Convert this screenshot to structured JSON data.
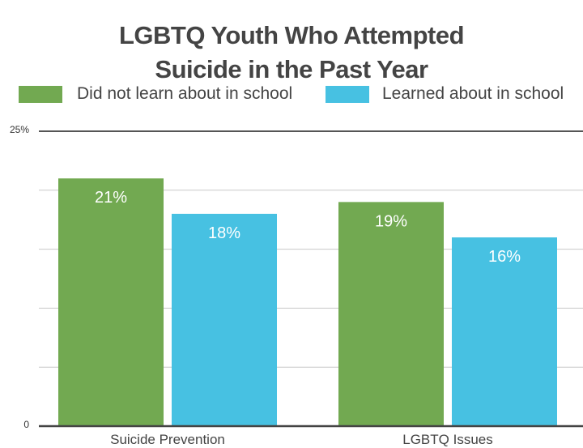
{
  "chart_data": {
    "type": "bar",
    "title": [
      "LGBTQ Youth Who Attempted",
      "Suicide in the Past Year"
    ],
    "categories": [
      "Suicide Prevention",
      "LGBTQ Issues"
    ],
    "series": [
      {
        "name": "Did not learn about in school",
        "values": [
          21,
          19
        ],
        "labels": [
          "21%",
          "19%"
        ],
        "color": "#72a951"
      },
      {
        "name": "Learned about in school",
        "values": [
          18,
          16
        ],
        "labels": [
          "18%",
          "16%"
        ],
        "color": "#47c1e2"
      }
    ],
    "ylim": [
      0,
      25
    ],
    "ytick_labels": [
      "0",
      "25%"
    ],
    "grid": true,
    "legend": "top"
  }
}
